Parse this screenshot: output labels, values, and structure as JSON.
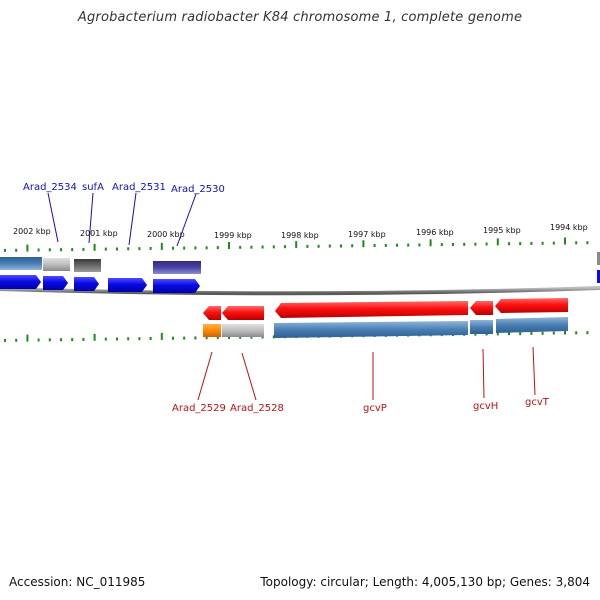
{
  "title": "Agrobacterium radiobacter K84 chromosome 1, complete genome",
  "accession_text": "Accession: NC_011985",
  "summary_text": "Topology: circular; Length: 4,005,130 bp; Genes: 3,804",
  "colors": {
    "forward_gene": "#0a0ae6",
    "reverse_gene": "#e81010",
    "cds_steel": "#4a7fb3",
    "backbone": "#888888",
    "tick": "#1d8a1d",
    "forward_label": "#1010c0",
    "reverse_label": "#c01010"
  },
  "kbp_ticks": [
    {
      "label": "2002 kbp",
      "pos_kbp": 2002
    },
    {
      "label": "2001 kbp",
      "pos_kbp": 2001
    },
    {
      "label": "2000 kbp",
      "pos_kbp": 2000
    },
    {
      "label": "1999 kbp",
      "pos_kbp": 1999
    },
    {
      "label": "1998 kbp",
      "pos_kbp": 1998
    },
    {
      "label": "1997 kbp",
      "pos_kbp": 1997
    },
    {
      "label": "1996 kbp",
      "pos_kbp": 1996
    },
    {
      "label": "1995 kbp",
      "pos_kbp": 1995
    },
    {
      "label": "1994 kbp",
      "pos_kbp": 1994
    }
  ],
  "forward_genes": [
    {
      "name": "Arad_2534"
    },
    {
      "name": "sufA"
    },
    {
      "name": "Arad_2531"
    },
    {
      "name": "Arad_2530"
    }
  ],
  "reverse_genes": [
    {
      "name": "Arad_2529"
    },
    {
      "name": "Arad_2528"
    },
    {
      "name": "gcvP"
    },
    {
      "name": "gcvH"
    },
    {
      "name": "gcvT"
    }
  ]
}
